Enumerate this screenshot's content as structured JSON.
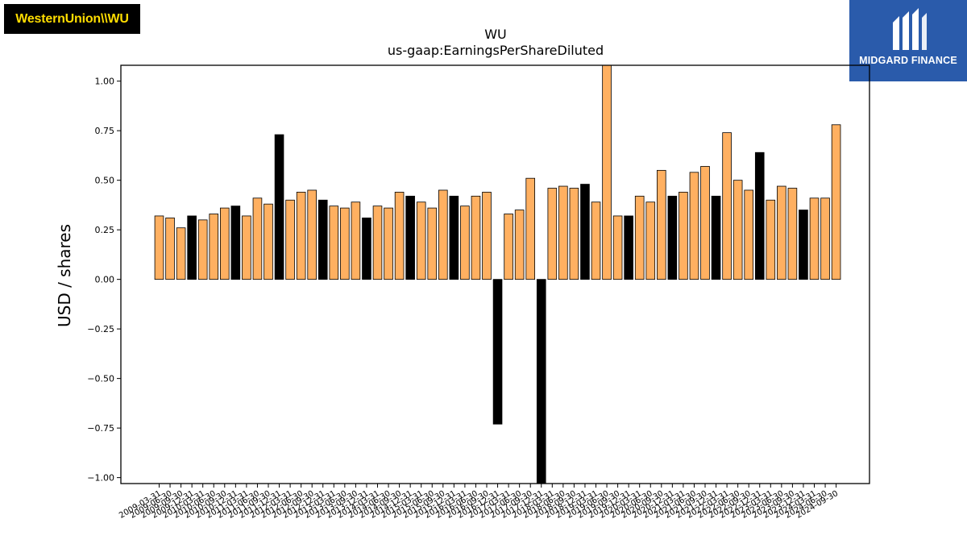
{
  "logos": {
    "left": "WesternUnion\\\\WU",
    "right": "MIDGARD FINANCE"
  },
  "chart_data": {
    "type": "bar",
    "title": "WU",
    "subtitle": "us-gaap:EarningsPerShareDiluted",
    "xlabel": "",
    "ylabel": "USD / shares",
    "ylim": [
      -1.03,
      1.08
    ],
    "yticks": [
      "1.00",
      "0.75",
      "0.50",
      "0.25",
      "0.00",
      "−0.25",
      "−0.50",
      "−0.75",
      "−1.00"
    ],
    "ytick_values": [
      1.0,
      0.75,
      0.5,
      0.25,
      0.0,
      -0.25,
      -0.5,
      -0.75,
      -1.0
    ],
    "grid": false,
    "colors": {
      "orange": "#ffb061",
      "black": "#000000"
    },
    "categories": [
      "2009-03-31",
      "2009-06-30",
      "2009-09-30",
      "2009-12-31",
      "2010-03-31",
      "2010-06-30",
      "2010-09-30",
      "2010-12-31",
      "2011-03-31",
      "2011-06-30",
      "2011-09-30",
      "2011-12-31",
      "2012-03-31",
      "2012-06-30",
      "2012-09-30",
      "2012-12-31",
      "2013-03-31",
      "2013-06-30",
      "2013-09-30",
      "2013-12-31",
      "2014-03-31",
      "2014-06-30",
      "2014-09-30",
      "2014-12-31",
      "2015-03-31",
      "2015-06-30",
      "2015-09-30",
      "2015-12-31",
      "2016-03-31",
      "2016-06-30",
      "2016-09-30",
      "2016-12-31",
      "2017-03-31",
      "2017-06-30",
      "2017-09-30",
      "2017-12-31",
      "2018-03-31",
      "2018-06-30",
      "2018-09-30",
      "2018-12-31",
      "2019-03-31",
      "2019-06-30",
      "2019-09-30",
      "2019-12-31",
      "2020-03-31",
      "2020-06-30",
      "2020-09-30",
      "2020-12-31",
      "2021-03-31",
      "2021-06-30",
      "2021-09-30",
      "2021-12-31",
      "2022-03-31",
      "2022-06-30",
      "2022-09-30",
      "2022-12-31",
      "2023-03-31",
      "2023-06-30",
      "2023-09-30",
      "2023-12-31",
      "2024-03-31",
      "2024-06-30",
      "2024-09-30"
    ],
    "values": [
      0.32,
      0.31,
      0.26,
      0.32,
      0.3,
      0.33,
      0.36,
      0.37,
      0.32,
      0.41,
      0.38,
      0.73,
      0.4,
      0.44,
      0.45,
      0.4,
      0.37,
      0.36,
      0.39,
      0.31,
      0.37,
      0.36,
      0.44,
      0.42,
      0.39,
      0.36,
      0.45,
      0.42,
      0.37,
      0.42,
      0.44,
      -0.73,
      0.33,
      0.35,
      0.51,
      -1.05,
      0.46,
      0.47,
      0.46,
      0.48,
      0.39,
      1.1,
      0.32,
      0.32,
      0.42,
      0.39,
      0.55,
      0.42,
      0.44,
      0.54,
      0.57,
      0.42,
      0.74,
      0.5,
      0.45,
      0.64,
      0.4,
      0.47,
      0.46,
      0.35,
      0.41,
      0.41,
      0.78
    ],
    "bar_colors": [
      "orange",
      "orange",
      "orange",
      "black",
      "orange",
      "orange",
      "orange",
      "black",
      "orange",
      "orange",
      "orange",
      "black",
      "orange",
      "orange",
      "orange",
      "black",
      "orange",
      "orange",
      "orange",
      "black",
      "orange",
      "orange",
      "orange",
      "black",
      "orange",
      "orange",
      "orange",
      "black",
      "orange",
      "orange",
      "orange",
      "black",
      "orange",
      "orange",
      "orange",
      "black",
      "orange",
      "orange",
      "orange",
      "black",
      "orange",
      "orange",
      "orange",
      "black",
      "orange",
      "orange",
      "orange",
      "black",
      "orange",
      "orange",
      "orange",
      "black",
      "orange",
      "orange",
      "orange",
      "black",
      "orange",
      "orange",
      "orange",
      "black",
      "orange",
      "orange",
      "orange"
    ]
  }
}
